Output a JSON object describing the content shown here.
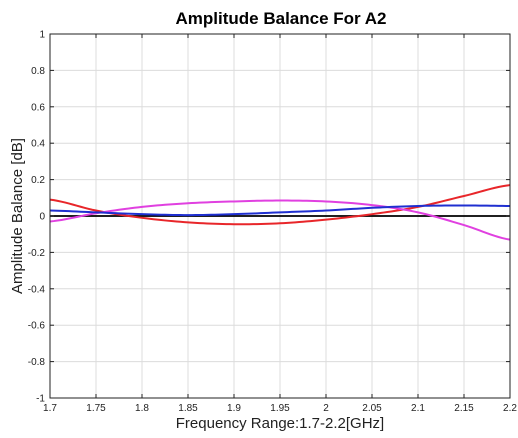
{
  "chart_data": {
    "type": "line",
    "title": "Amplitude Balance For A2",
    "xlabel": "Frequency Range:1.7-2.2[GHz]",
    "ylabel": "Amplitude Balance [dB]",
    "xlim": [
      1.7,
      2.2
    ],
    "ylim": [
      -1,
      1
    ],
    "xticks": [
      "1.7",
      "1.75",
      "1.8",
      "1.85",
      "1.9",
      "1.95",
      "2",
      "2.05",
      "2.1",
      "2.15",
      "2.2"
    ],
    "yticks": [
      "-1",
      "-0.8",
      "-0.6",
      "-0.4",
      "-0.2",
      "0",
      "0.2",
      "0.4",
      "0.6",
      "0.8",
      "1"
    ],
    "grid": true,
    "x": [
      1.7,
      1.75,
      1.8,
      1.85,
      1.9,
      1.95,
      2.0,
      2.05,
      2.1,
      2.15,
      2.2
    ],
    "series": [
      {
        "color": "#000000",
        "values": [
          0,
          0,
          0,
          0,
          0,
          0,
          0,
          0,
          0,
          0,
          0
        ]
      },
      {
        "color": "#e8262a",
        "values": [
          0.09,
          0.03,
          -0.01,
          -0.035,
          -0.045,
          -0.04,
          -0.02,
          0.01,
          0.05,
          0.11,
          0.17
        ]
      },
      {
        "color": "#e040e0",
        "values": [
          -0.03,
          0.015,
          0.05,
          0.07,
          0.08,
          0.085,
          0.08,
          0.06,
          0.02,
          -0.05,
          -0.13
        ]
      },
      {
        "color": "#1f2fd0",
        "values": [
          0.03,
          0.02,
          0.01,
          0.005,
          0.01,
          0.02,
          0.03,
          0.045,
          0.055,
          0.058,
          0.055
        ]
      }
    ]
  }
}
